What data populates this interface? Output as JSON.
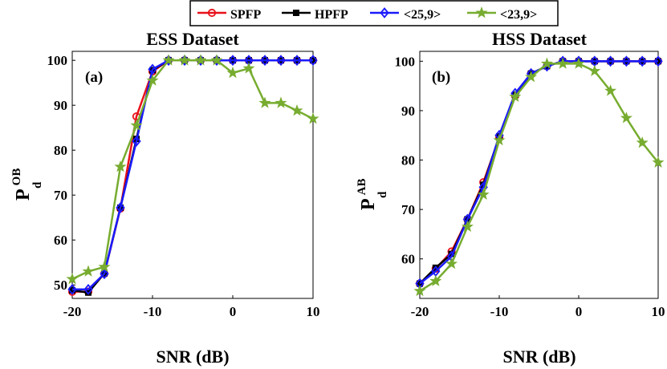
{
  "legend": {
    "entries": [
      {
        "label": "SPFP",
        "color": "#e8111b",
        "marker": "circle"
      },
      {
        "label": "HPFP",
        "color": "#000000",
        "marker": "square"
      },
      {
        "label": "<25,9>",
        "color": "#1a1aff",
        "marker": "diamond"
      },
      {
        "label": "<23,9>",
        "color": "#77ac30",
        "marker": "star"
      }
    ]
  },
  "chart_data": [
    {
      "type": "line",
      "title": "ESS Dataset",
      "panel_label": "(a)",
      "xlabel": "SNR (dB)",
      "ylabel_main": "P",
      "ylabel_sup": "OB",
      "ylabel_sub": "d",
      "xlim": [
        -20,
        10
      ],
      "ylim": [
        47,
        102
      ],
      "xticks": [
        -20,
        -10,
        0,
        10
      ],
      "yticks": [
        50,
        60,
        70,
        80,
        90,
        100
      ],
      "x": [
        -20,
        -18,
        -16,
        -14,
        -12,
        -10,
        -8,
        -6,
        -4,
        -2,
        0,
        2,
        4,
        6,
        8,
        10
      ],
      "series": [
        {
          "name": "SPFP",
          "values": [
            48.5,
            48.5,
            52.5,
            67.0,
            87.5,
            97.5,
            100,
            100,
            100,
            100,
            100,
            100,
            100,
            100,
            100,
            100
          ]
        },
        {
          "name": "HPFP",
          "values": [
            48.8,
            48.3,
            52.6,
            67.2,
            82.5,
            97.8,
            100,
            100,
            100,
            100,
            100,
            100,
            100,
            100,
            100,
            100
          ]
        },
        {
          "name": "<25,9>",
          "values": [
            49.0,
            49.0,
            52.5,
            67.2,
            82.0,
            98.0,
            100,
            100,
            100,
            100,
            100,
            100,
            100,
            100,
            100,
            100
          ]
        },
        {
          "name": "<23,9>",
          "values": [
            51.3,
            53.0,
            54.0,
            76.3,
            85.5,
            95.5,
            100,
            100,
            100,
            100,
            97.2,
            98.2,
            90.5,
            90.5,
            88.8,
            87.0
          ]
        }
      ]
    },
    {
      "type": "line",
      "title": "HSS Dataset",
      "panel_label": "(b)",
      "xlabel": "SNR (dB)",
      "ylabel_main": "P",
      "ylabel_sup": "AB",
      "ylabel_sub": "d",
      "xlim": [
        -20,
        10
      ],
      "ylim": [
        52,
        102
      ],
      "xticks": [
        -20,
        -10,
        0,
        10
      ],
      "yticks": [
        60,
        70,
        80,
        90,
        100
      ],
      "x": [
        -20,
        -18,
        -16,
        -14,
        -12,
        -10,
        -8,
        -6,
        -4,
        -2,
        0,
        2,
        4,
        6,
        8,
        10
      ],
      "series": [
        {
          "name": "SPFP",
          "values": [
            55.0,
            58.0,
            61.5,
            68.0,
            75.5,
            84.5,
            93.0,
            97.5,
            99.0,
            100,
            100,
            100,
            100,
            100,
            100,
            100
          ]
        },
        {
          "name": "HPFP",
          "values": [
            55.0,
            58.2,
            61.0,
            68.0,
            75.0,
            84.8,
            93.2,
            97.5,
            99.0,
            100,
            100,
            100,
            100,
            100,
            100,
            100
          ]
        },
        {
          "name": "<25,9>",
          "values": [
            55.0,
            57.5,
            60.5,
            68.0,
            74.5,
            85.0,
            93.5,
            97.5,
            99.0,
            100,
            100,
            100,
            100,
            100,
            100,
            100
          ]
        },
        {
          "name": "<23,9>",
          "values": [
            53.5,
            55.5,
            59.0,
            66.5,
            73.0,
            84.0,
            92.8,
            96.8,
            99.5,
            99.5,
            99.5,
            98.0,
            94.0,
            88.5,
            83.5,
            79.5
          ]
        }
      ]
    }
  ]
}
